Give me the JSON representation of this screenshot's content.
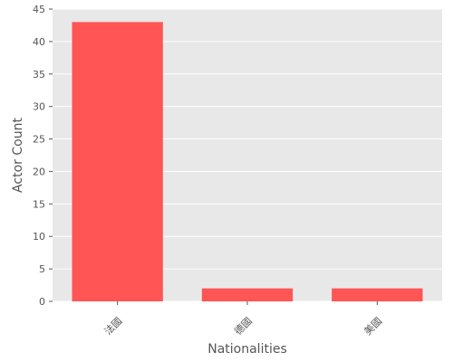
{
  "chart_data": {
    "type": "bar",
    "title": "",
    "xlabel": "Nationalities",
    "ylabel": "Actor Count",
    "categories": [
      "法國",
      "德國",
      "美國"
    ],
    "values": [
      43,
      2,
      2
    ],
    "ylim": [
      0,
      45
    ],
    "yticks": [
      0,
      5,
      10,
      15,
      20,
      25,
      30,
      35,
      40,
      45
    ],
    "grid": true,
    "legend": "none",
    "bar_color": "#ff5555",
    "plot_background": "#e8e8e8",
    "grid_color": "#ffffff",
    "text_color": "#555555"
  }
}
